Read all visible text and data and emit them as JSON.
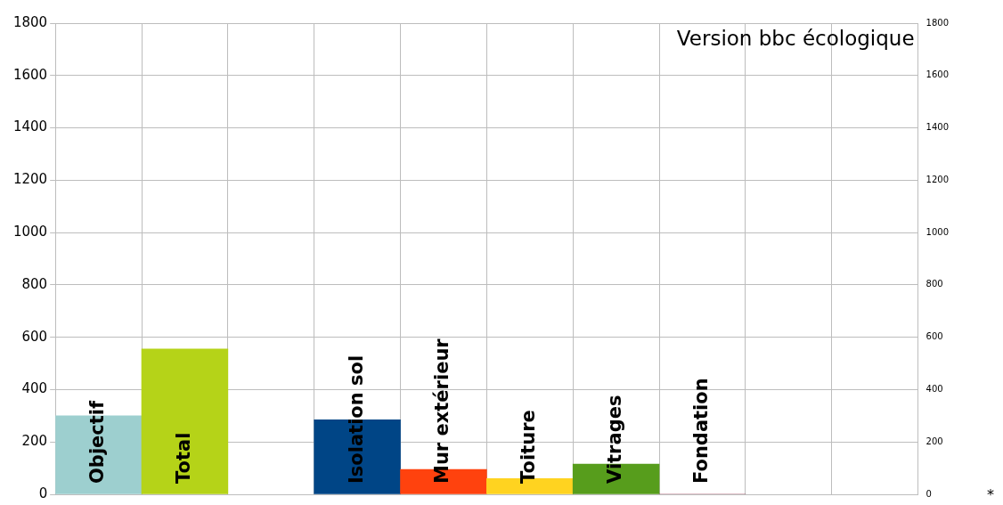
{
  "chart_data": {
    "type": "bar",
    "title": "Version bbc écologique",
    "categories": [
      "Objectif",
      "Total",
      null,
      "Isolation sol",
      "Mur extérieur",
      "Toiture",
      "Vitrages",
      "Fondation",
      null,
      null
    ],
    "values": [
      300,
      555,
      null,
      285,
      95,
      60,
      115,
      0,
      null,
      null
    ],
    "colors": [
      "#9dcfcf",
      "#b5d318",
      null,
      "#004586",
      "#ff420e",
      "#ffd320",
      "#579d1c",
      "#7e0021",
      null,
      null
    ],
    "ylim": [
      0,
      1800
    ],
    "yticks": [
      0,
      200,
      400,
      600,
      800,
      1000,
      1200,
      1400,
      1600,
      1800
    ],
    "y2lim": [
      0,
      1800
    ],
    "y2ticks": [
      0,
      200,
      400,
      600,
      800,
      1000,
      1200,
      1400,
      1600,
      1800
    ],
    "grid": true,
    "legend": false,
    "annotations": [
      "*"
    ]
  }
}
